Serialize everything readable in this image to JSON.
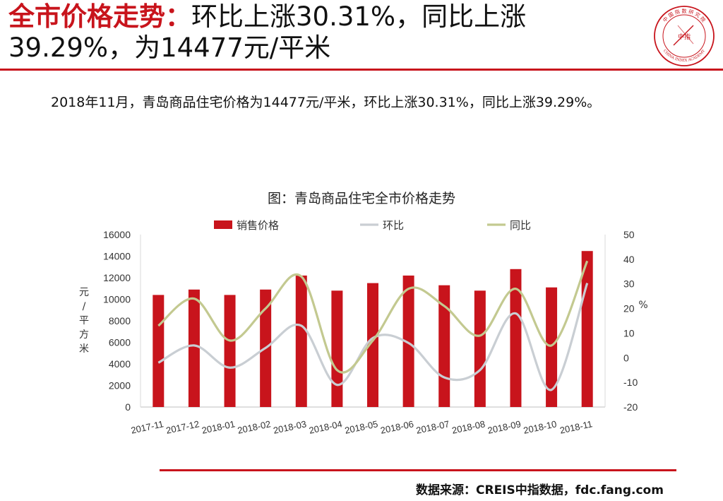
{
  "header": {
    "highlight": "全市价格走势：",
    "line1_rest": "环比上涨30.31%，同比上涨",
    "line2": "39.29%，为14477元/平米"
  },
  "logo": {
    "top_text": "中 国 指 数 研 究 院",
    "center_text": "中指",
    "bottom_text": "CHINA INDEX ACADEMY",
    "icon": "china-index-academy-seal",
    "color": "#c8141c"
  },
  "summary": "2018年11月，青岛商品住宅价格为14477元/平米，环比上涨30.31%，同比上涨39.29%。",
  "source": "数据来源：CREIS中指数据，fdc.fang.com",
  "chart_data": {
    "type": "bar",
    "title": "图：青岛商品住宅全市价格走势",
    "categories": [
      "2017-11",
      "2017-12",
      "2018-01",
      "2018-02",
      "2018-03",
      "2018-04",
      "2018-05",
      "2018-06",
      "2018-07",
      "2018-08",
      "2018-09",
      "2018-10",
      "2018-11"
    ],
    "ylabel": "元/平方米",
    "y2label": "%",
    "ylim": [
      0,
      16000
    ],
    "yticks": [
      0,
      2000,
      4000,
      6000,
      8000,
      10000,
      12000,
      14000,
      16000
    ],
    "y2lim": [
      -20,
      50
    ],
    "y2ticks": [
      -20,
      -10,
      0,
      10,
      20,
      30,
      40,
      50
    ],
    "legend_position": "top",
    "grid": false,
    "series": [
      {
        "name": "销售价格",
        "type": "bar",
        "axis": "left",
        "color": "#c8141c",
        "values": [
          10400,
          10900,
          10400,
          10900,
          12200,
          10800,
          11500,
          12200,
          11300,
          10800,
          12800,
          11100,
          14477
        ]
      },
      {
        "name": "环比",
        "type": "line",
        "axis": "right",
        "color": "#c9ced3",
        "values": [
          -2,
          5,
          -4,
          4,
          13,
          -11,
          8,
          6,
          -8,
          -5,
          18,
          -13,
          30.31
        ]
      },
      {
        "name": "同比",
        "type": "line",
        "axis": "right",
        "color": "#c3c990",
        "values": [
          13,
          24,
          7,
          20,
          33,
          -5,
          7,
          28,
          21,
          9,
          28,
          5,
          39.29
        ]
      }
    ]
  }
}
